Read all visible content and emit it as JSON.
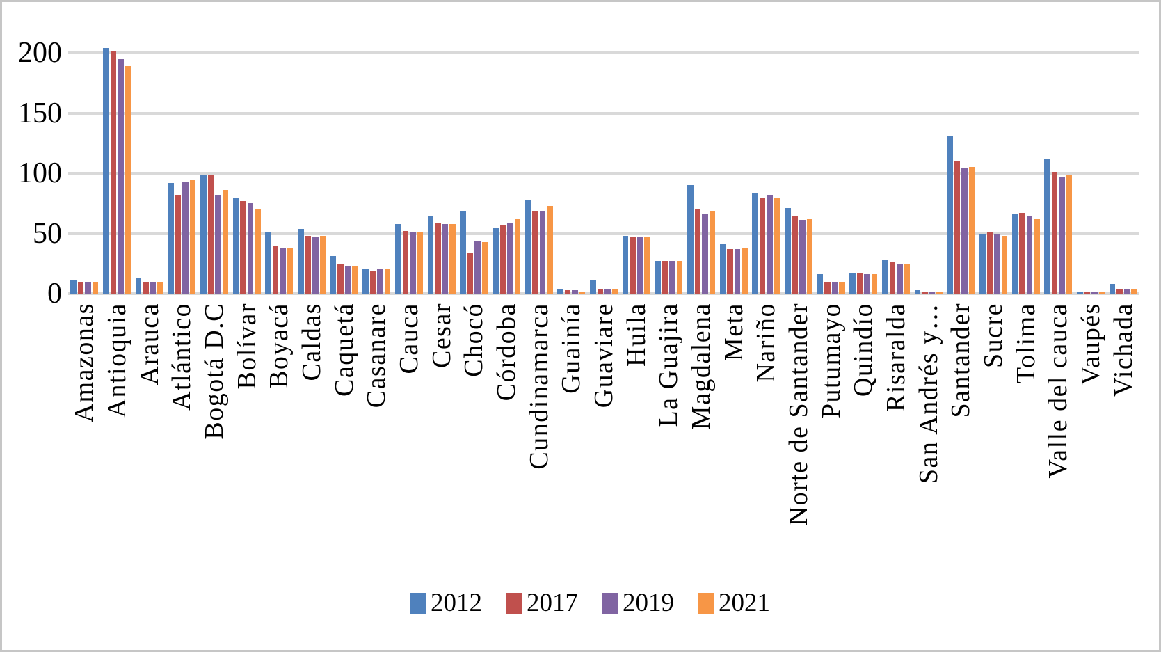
{
  "chart_data": {
    "type": "bar",
    "title": "",
    "xlabel": "",
    "ylabel": "",
    "ylim": [
      0,
      200
    ],
    "yticks": [
      0,
      50,
      100,
      150,
      200
    ],
    "grid": true,
    "gridline_color": "#d9d9d9",
    "background_color": "#ffffff",
    "legend_position": "bottom",
    "categories": [
      "Amazonas",
      "Antioquia",
      "Arauca",
      "Atlántico",
      "Bogotá D.C",
      "Bolívar",
      "Boyacá",
      "Caldas",
      "Caquetá",
      "Casanare",
      "Cauca",
      "Cesar",
      "Chocó",
      "Córdoba",
      "Cundinamarca",
      "Guainía",
      "Guaviare",
      "Huila",
      "La Guajira",
      "Magdalena",
      "Meta",
      "Nariño",
      "Norte de Santander",
      "Putumayo",
      "Quindío",
      "Risaralda",
      "San Andrés y…",
      "Santander",
      "Sucre",
      "Tolima",
      "Valle del cauca",
      "Vaupés",
      "Vichada"
    ],
    "series": [
      {
        "name": "2012",
        "color": "#4f81bd",
        "values": [
          11,
          204,
          13,
          92,
          99,
          79,
          51,
          54,
          31,
          21,
          58,
          64,
          69,
          55,
          78,
          4,
          11,
          48,
          27,
          90,
          41,
          83,
          71,
          16,
          17,
          28,
          3,
          131,
          49,
          66,
          112,
          2,
          8
        ]
      },
      {
        "name": "2017",
        "color": "#c0504d",
        "values": [
          10,
          202,
          10,
          82,
          99,
          77,
          40,
          48,
          24,
          19,
          52,
          59,
          34,
          57,
          69,
          3,
          4,
          47,
          27,
          70,
          37,
          80,
          64,
          10,
          17,
          26,
          2,
          110,
          51,
          67,
          101,
          2,
          4
        ]
      },
      {
        "name": "2019",
        "color": "#8064a2",
        "values": [
          10,
          195,
          10,
          93,
          82,
          75,
          38,
          47,
          23,
          21,
          51,
          58,
          44,
          59,
          69,
          3,
          4,
          47,
          27,
          66,
          37,
          82,
          61,
          10,
          16,
          24,
          2,
          104,
          50,
          64,
          97,
          2,
          4
        ]
      },
      {
        "name": "2021",
        "color": "#f79646",
        "values": [
          10,
          189,
          10,
          95,
          86,
          70,
          38,
          48,
          23,
          21,
          51,
          58,
          43,
          62,
          73,
          2,
          4,
          47,
          27,
          69,
          38,
          80,
          62,
          10,
          16,
          24,
          2,
          105,
          48,
          62,
          99,
          2,
          4
        ]
      }
    ]
  }
}
